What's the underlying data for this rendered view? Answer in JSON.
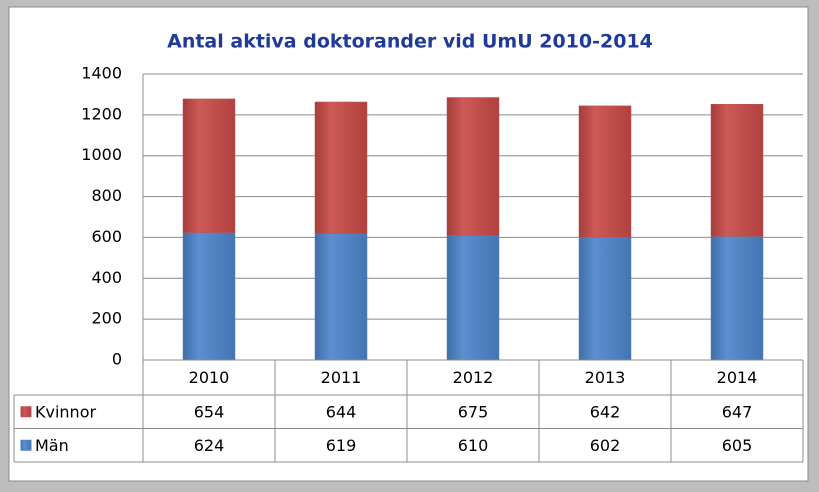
{
  "chart_data": {
    "type": "bar",
    "stacked": true,
    "title": "Antal aktiva doktorander vid UmU 2010-2014",
    "categories": [
      "2010",
      "2011",
      "2012",
      "2013",
      "2014"
    ],
    "series": [
      {
        "name": "Kvinnor",
        "color": "#c0504d",
        "values": [
          654,
          644,
          675,
          642,
          647
        ]
      },
      {
        "name": "Män",
        "color": "#4f81bd",
        "values": [
          624,
          619,
          610,
          602,
          605
        ]
      }
    ],
    "ylim": [
      0,
      1400
    ],
    "yticks": [
      0,
      200,
      400,
      600,
      800,
      1000,
      1200,
      1400
    ],
    "grid": true
  }
}
